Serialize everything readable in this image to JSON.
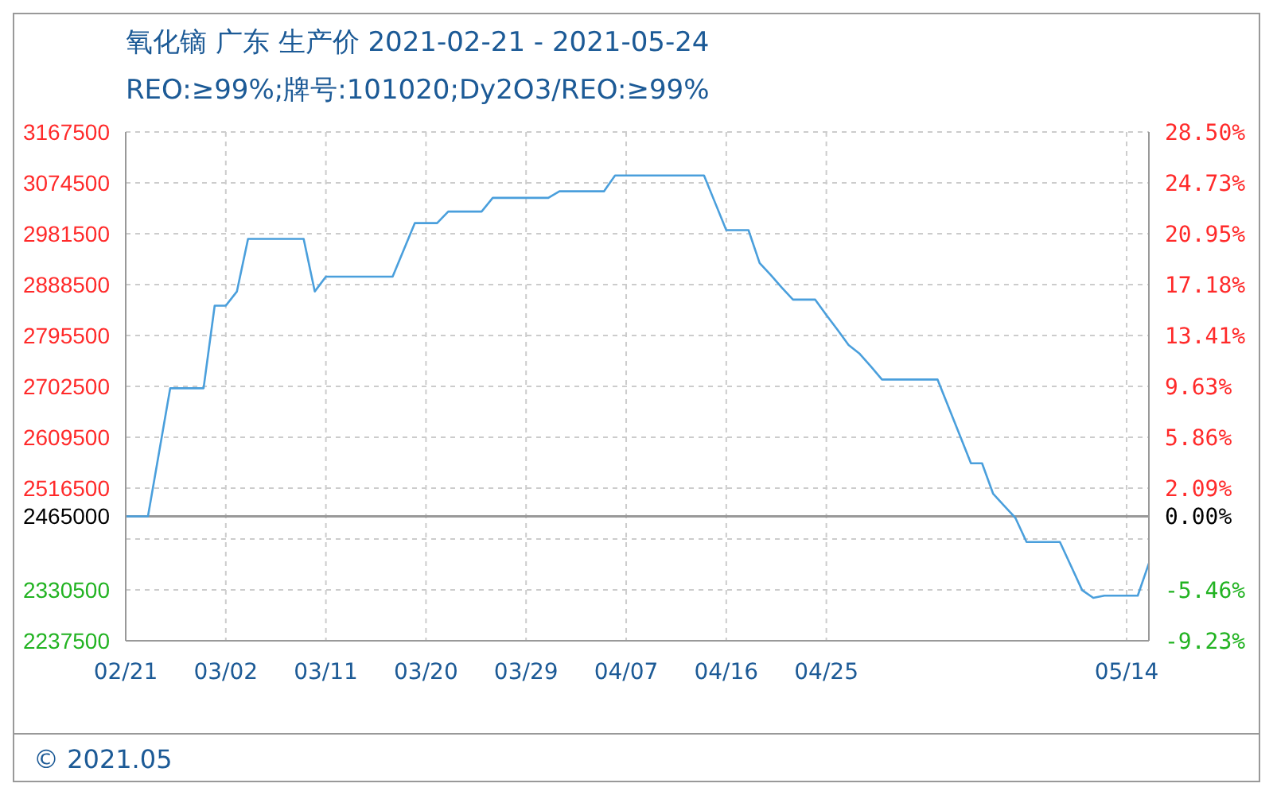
{
  "chart_data": {
    "type": "line",
    "title": "氧化镝 广东 生产价 2021-02-21 - 2021-05-24",
    "subtitle": "REO:≥99%;牌号:101020;Dy2O3/REO:≥99%",
    "categories": [
      "02/21",
      null,
      null,
      null,
      null,
      null,
      null,
      null,
      null,
      "03/02",
      null,
      null,
      null,
      null,
      null,
      null,
      null,
      null,
      "03/11",
      null,
      null,
      null,
      null,
      null,
      null,
      null,
      null,
      "03/20",
      null,
      null,
      null,
      null,
      null,
      null,
      null,
      null,
      "03/29",
      null,
      null,
      null,
      null,
      null,
      null,
      null,
      null,
      "04/07",
      null,
      null,
      null,
      null,
      null,
      null,
      null,
      null,
      "04/16",
      null,
      null,
      null,
      null,
      null,
      null,
      null,
      null,
      "04/25",
      null,
      null,
      null,
      null,
      null,
      null,
      null,
      null,
      null,
      null,
      null,
      null,
      null,
      null,
      null,
      null,
      null,
      null,
      null,
      null,
      null,
      null,
      null,
      null,
      null,
      null,
      "05/14",
      null,
      null
    ],
    "series": [
      {
        "color": "#4a9fdc",
        "values": [
          2465000,
          2465000,
          2465000,
          2582000,
          2699000,
          2699000,
          2699000,
          2699000,
          2850000,
          2850000,
          2876000,
          2972000,
          2972000,
          2972000,
          2972000,
          2972000,
          2972000,
          2876000,
          2903000,
          2903000,
          2903000,
          2903000,
          2903000,
          2903000,
          2903000,
          2952000,
          3001000,
          3001000,
          3001000,
          3022000,
          3022000,
          3022000,
          3022000,
          3047000,
          3047000,
          3047000,
          3047000,
          3047000,
          3047000,
          3059000,
          3059000,
          3059000,
          3059000,
          3059000,
          3088000,
          3088000,
          3088000,
          3088000,
          3088000,
          3088000,
          3088000,
          3088000,
          3088000,
          3038000,
          2988000,
          2988000,
          2988000,
          2928000,
          2906000,
          2883000,
          2861000,
          2861000,
          2861000,
          2833000,
          2806000,
          2778000,
          2762000,
          2739000,
          2715000,
          2715000,
          2715000,
          2715000,
          2715000,
          2715000,
          2664000,
          2613000,
          2562000,
          2562000,
          2506000,
          2484000,
          2462000,
          2418000,
          2418000,
          2418000,
          2418000,
          2374000,
          2330000,
          2316000,
          2320000,
          2320000,
          2320000,
          2320000,
          2379000
        ]
      }
    ],
    "ylim": [
      2237500,
      3167500
    ],
    "yticks": [
      2237500,
      2330500,
      {
        "value": 2423500,
        "label": null
      },
      2465000,
      2516500,
      2609500,
      2702500,
      2795500,
      2888500,
      2981500,
      3074500,
      3167500
    ],
    "y2lim": [
      -9.23,
      28.5
    ],
    "y2ticks": [
      {
        "value": -9.23,
        "label": "-9.23%"
      },
      {
        "value": -5.46,
        "label": "-5.46%"
      },
      {
        "value": -1.68,
        "label": null
      },
      {
        "value": 0,
        "label": "0.00%"
      },
      {
        "value": 2.09,
        "label": "2.09%"
      },
      {
        "value": 5.86,
        "label": "5.86%"
      },
      {
        "value": 9.63,
        "label": "9.63%"
      },
      {
        "value": 13.41,
        "label": "13.41%"
      },
      {
        "value": 17.18,
        "label": "17.18%"
      },
      {
        "value": 20.95,
        "label": "20.95%"
      },
      {
        "value": 24.73,
        "label": "24.73%"
      },
      {
        "value": 28.5,
        "label": "28.50%"
      }
    ],
    "ref_lines": [
      {
        "axis": "y",
        "value": 2465000,
        "color": "#999999"
      }
    ],
    "grid": true,
    "marker": "none",
    "line_style": "solid",
    "annotations": [
      "© 2021.05"
    ]
  }
}
